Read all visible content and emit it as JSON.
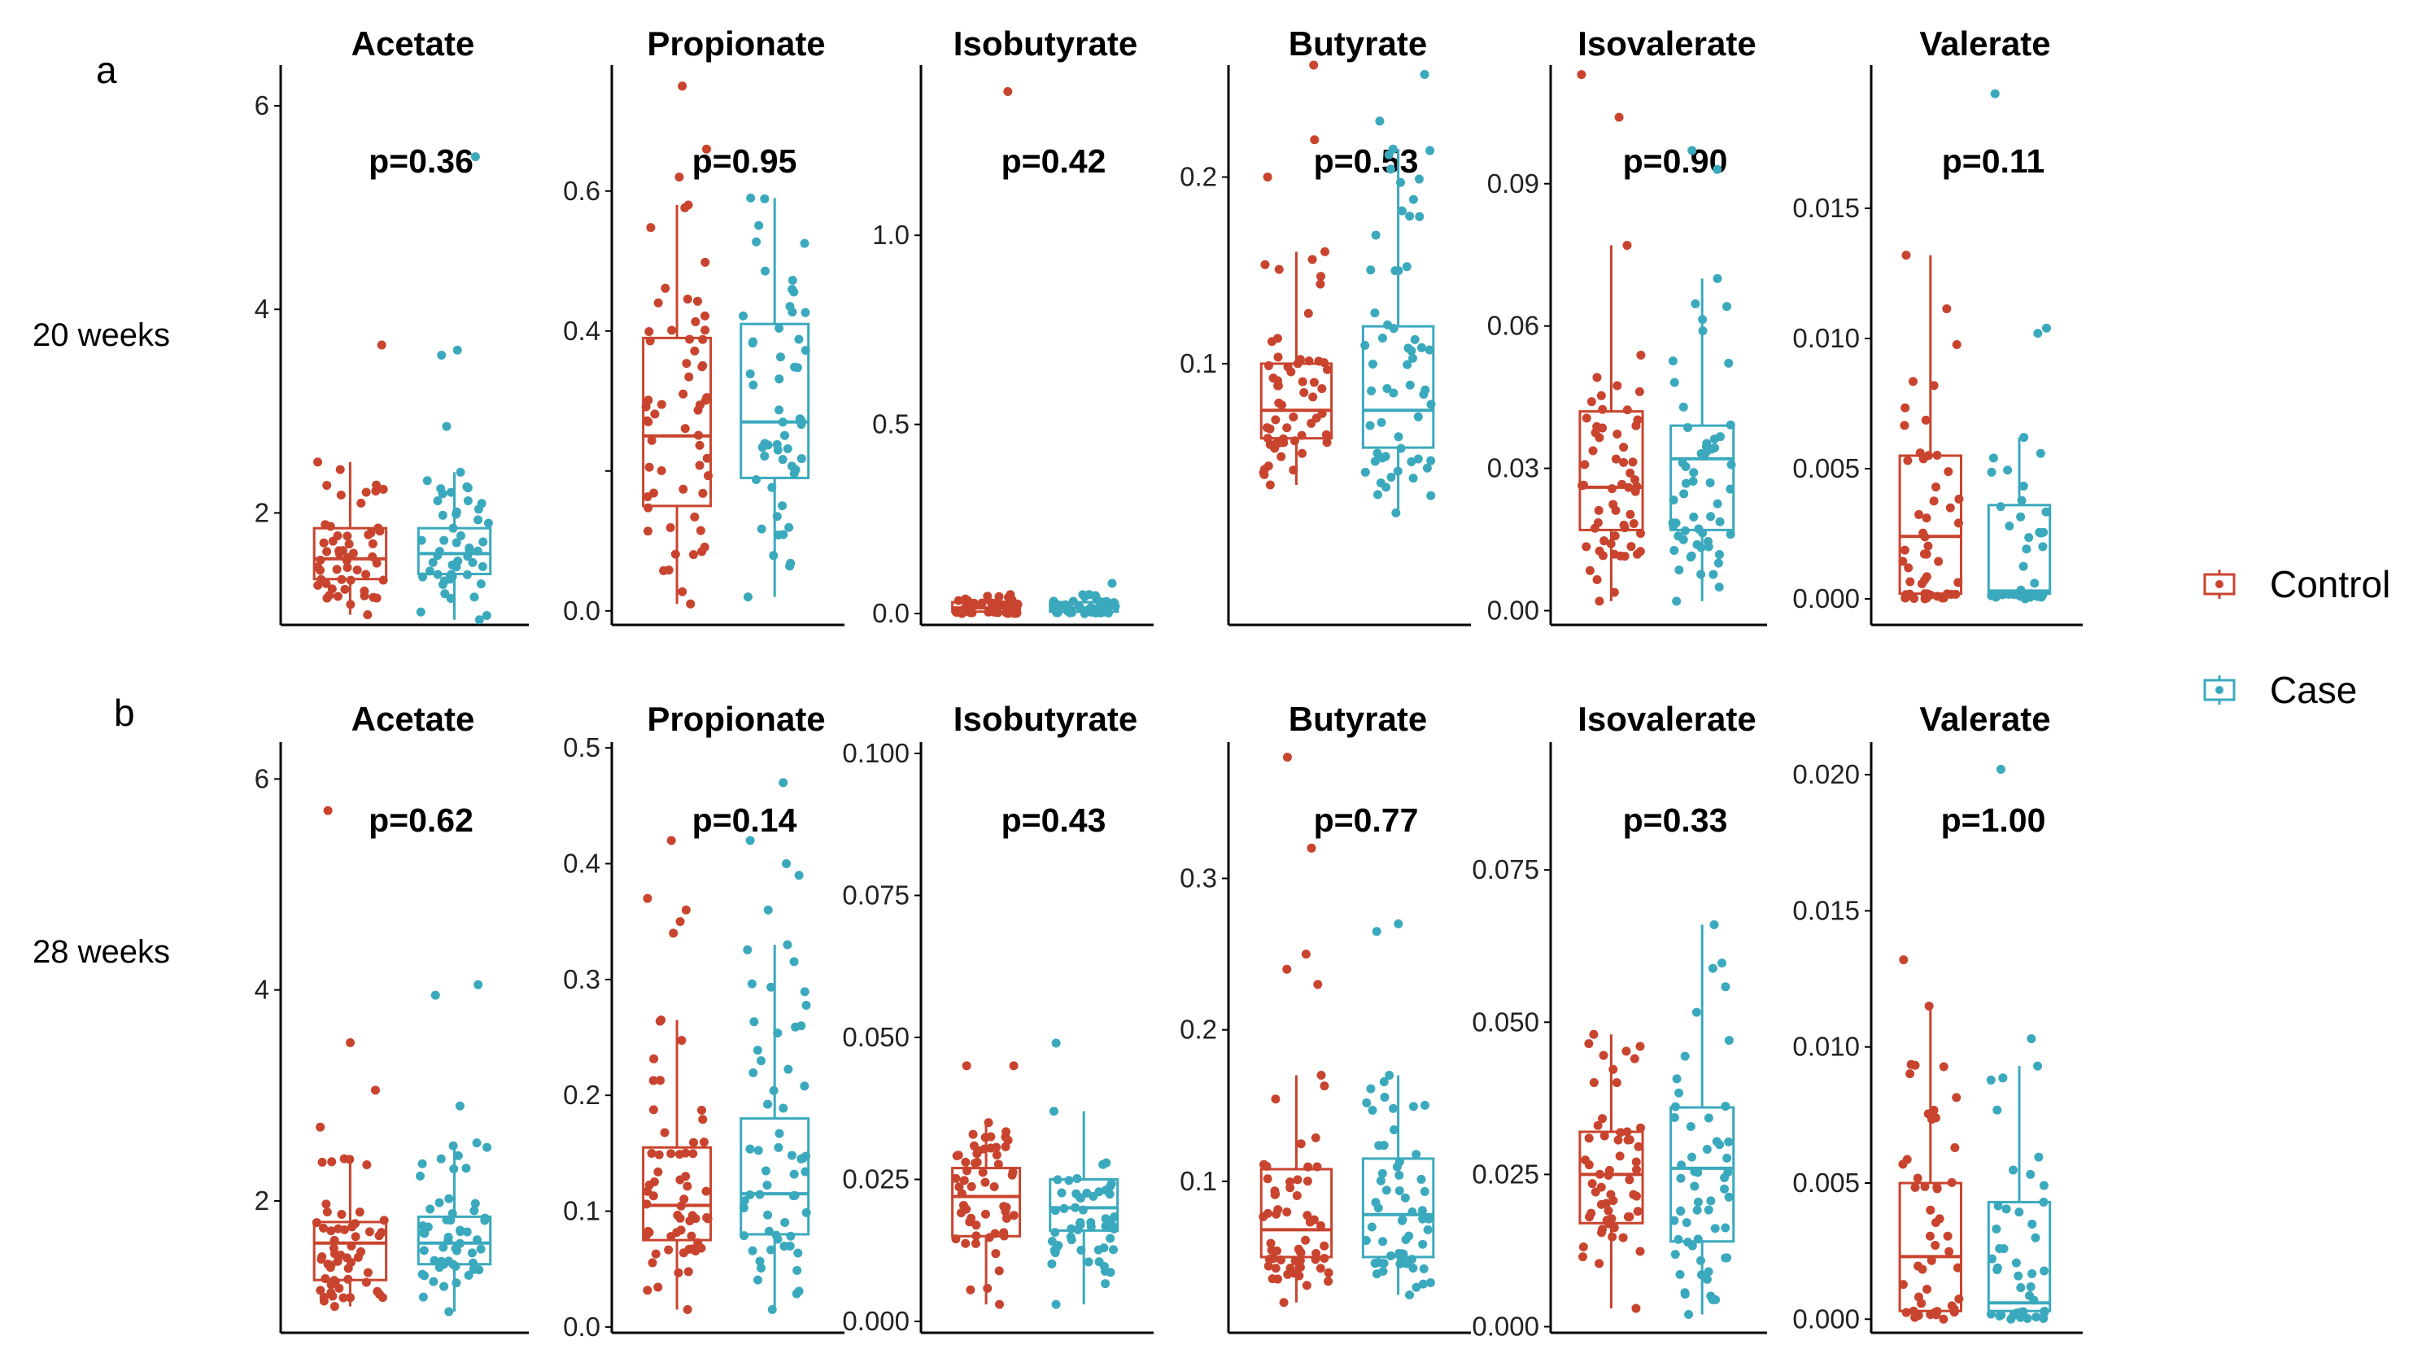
{
  "colors": {
    "control": "#c9442e",
    "case": "#3ba9bd",
    "axis": "#000000"
  },
  "legend": [
    {
      "key": "control",
      "label": "Control"
    },
    {
      "key": "case",
      "label": "Case"
    }
  ],
  "chart_data": [
    {
      "type": "box",
      "letter": "a",
      "row_label": "20 weeks",
      "panels": [
        {
          "title": "Acetate",
          "p": "p=0.36",
          "ylim": [
            0.9,
            6.4
          ],
          "ticks": [
            2,
            4,
            6
          ],
          "tick_labels": [
            "2",
            "4",
            "6"
          ],
          "series": [
            {
              "name": "Control",
              "q1": 1.35,
              "median": 1.55,
              "q3": 1.85,
              "whisker_low": 1.0,
              "whisker_high": 2.5,
              "n": 52,
              "outliers": [
                3.65
              ]
            },
            {
              "name": "Case",
              "q1": 1.4,
              "median": 1.6,
              "q3": 1.85,
              "whisker_low": 0.95,
              "whisker_high": 2.4,
              "n": 50,
              "outliers": [
                5.5,
                3.6,
                3.55,
                2.85
              ]
            }
          ]
        },
        {
          "title": "Propionate",
          "p": "p=0.95",
          "ylim": [
            -0.02,
            0.78
          ],
          "ticks": [
            0.0,
            0.2,
            0.4,
            0.6
          ],
          "tick_labels": [
            "0.0",
            "",
            "0.4",
            "0.6"
          ],
          "series": [
            {
              "name": "Control",
              "q1": 0.15,
              "median": 0.25,
              "q3": 0.39,
              "whisker_low": 0.01,
              "whisker_high": 0.58,
              "n": 56,
              "outliers": [
                0.75,
                0.66,
                0.62
              ]
            },
            {
              "name": "Case",
              "q1": 0.19,
              "median": 0.27,
              "q3": 0.41,
              "whisker_low": 0.02,
              "whisker_high": 0.59,
              "n": 52,
              "outliers": []
            }
          ]
        },
        {
          "title": "Isobutyrate",
          "p": "p=0.42",
          "ylim": [
            -0.03,
            1.45
          ],
          "ticks": [
            0.0,
            0.5,
            1.0
          ],
          "tick_labels": [
            "0.0",
            "0.5",
            "1.0"
          ],
          "series": [
            {
              "name": "Control",
              "q1": 0.005,
              "median": 0.015,
              "q3": 0.03,
              "whisker_low": 0.0,
              "whisker_high": 0.05,
              "n": 42,
              "outliers": [
                1.38
              ]
            },
            {
              "name": "Case",
              "q1": 0.005,
              "median": 0.015,
              "q3": 0.03,
              "whisker_low": 0.0,
              "whisker_high": 0.05,
              "n": 40,
              "outliers": [
                0.08
              ]
            }
          ]
        },
        {
          "title": "Butyrate",
          "p": "p=0.53",
          "ylim": [
            -0.04,
            0.26
          ],
          "ticks": [
            0.1,
            0.2
          ],
          "tick_labels": [
            "0.1",
            "0.2"
          ],
          "series": [
            {
              "name": "Control",
              "q1": 0.06,
              "median": 0.075,
              "q3": 0.1,
              "whisker_low": 0.035,
              "whisker_high": 0.16,
              "n": 55,
              "outliers": [
                0.26,
                0.22,
                0.2
              ]
            },
            {
              "name": "Case",
              "q1": 0.055,
              "median": 0.075,
              "q3": 0.12,
              "whisker_low": 0.02,
              "whisker_high": 0.215,
              "n": 55,
              "outliers": [
                0.255,
                0.23
              ]
            }
          ]
        },
        {
          "title": "Isovalerate",
          "p": "p=0.90",
          "ylim": [
            -0.003,
            0.115
          ],
          "ticks": [
            0.0,
            0.03,
            0.06,
            0.09
          ],
          "tick_labels": [
            "0.00",
            "0.03",
            "0.06",
            "0.09"
          ],
          "series": [
            {
              "name": "Control",
              "q1": 0.017,
              "median": 0.026,
              "q3": 0.042,
              "whisker_low": 0.002,
              "whisker_high": 0.077,
              "n": 56,
              "outliers": [
                0.113,
                0.104
              ]
            },
            {
              "name": "Case",
              "q1": 0.017,
              "median": 0.032,
              "q3": 0.039,
              "whisker_low": 0.002,
              "whisker_high": 0.07,
              "n": 55,
              "outliers": [
                0.097,
                0.093
              ]
            }
          ]
        },
        {
          "title": "Valerate",
          "p": "p=0.11",
          "ylim": [
            -0.001,
            0.0205
          ],
          "ticks": [
            0.0,
            0.005,
            0.01,
            0.015
          ],
          "tick_labels": [
            "0.000",
            "0.005",
            "0.010",
            "0.015"
          ],
          "series": [
            {
              "name": "Control",
              "q1": 0.0002,
              "median": 0.0024,
              "q3": 0.0055,
              "whisker_low": 0.0,
              "whisker_high": 0.0132,
              "n": 50,
              "outliers": []
            },
            {
              "name": "Case",
              "q1": 0.0002,
              "median": 0.0003,
              "q3": 0.0036,
              "whisker_low": 0.0,
              "whisker_high": 0.0062,
              "n": 40,
              "outliers": [
                0.0194,
                0.0104,
                0.0102
              ]
            }
          ]
        }
      ]
    },
    {
      "type": "box",
      "letter": "b",
      "row_label": "28 weeks",
      "panels": [
        {
          "title": "Acetate",
          "p": "p=0.62",
          "ylim": [
            0.75,
            6.35
          ],
          "ticks": [
            2,
            4,
            6
          ],
          "tick_labels": [
            "2",
            "4",
            "6"
          ],
          "series": [
            {
              "name": "Control",
              "q1": 1.25,
              "median": 1.6,
              "q3": 1.8,
              "whisker_low": 1.0,
              "whisker_high": 2.4,
              "n": 54,
              "outliers": [
                5.7,
                3.5,
                3.05,
                2.7
              ]
            },
            {
              "name": "Case",
              "q1": 1.4,
              "median": 1.6,
              "q3": 1.85,
              "whisker_low": 0.95,
              "whisker_high": 2.55,
              "n": 52,
              "outliers": [
                4.05,
                3.95,
                2.9
              ]
            }
          ]
        },
        {
          "title": "Propionate",
          "p": "p=0.14",
          "ylim": [
            -0.005,
            0.505
          ],
          "ticks": [
            0.0,
            0.1,
            0.2,
            0.3,
            0.4,
            0.5
          ],
          "tick_labels": [
            "0.0",
            "0.1",
            "0.2",
            "0.3",
            "0.4",
            "0.5"
          ],
          "series": [
            {
              "name": "Control",
              "q1": 0.075,
              "median": 0.105,
              "q3": 0.155,
              "whisker_low": 0.015,
              "whisker_high": 0.265,
              "n": 56,
              "outliers": [
                0.42,
                0.37,
                0.36,
                0.35,
                0.34
              ]
            },
            {
              "name": "Case",
              "q1": 0.08,
              "median": 0.115,
              "q3": 0.18,
              "whisker_low": 0.015,
              "whisker_high": 0.33,
              "n": 55,
              "outliers": [
                0.47,
                0.42,
                0.4,
                0.39,
                0.36
              ]
            }
          ]
        },
        {
          "title": "Isobutyrate",
          "p": "p=0.43",
          "ylim": [
            -0.002,
            0.102
          ],
          "ticks": [
            0.0,
            0.025,
            0.05,
            0.075,
            0.1
          ],
          "tick_labels": [
            "0.000",
            "0.025",
            "0.050",
            "0.075",
            "0.100"
          ],
          "series": [
            {
              "name": "Control",
              "q1": 0.015,
              "median": 0.022,
              "q3": 0.027,
              "whisker_low": 0.003,
              "whisker_high": 0.035,
              "n": 55,
              "outliers": [
                0.045,
                0.045
              ]
            },
            {
              "name": "Case",
              "q1": 0.016,
              "median": 0.02,
              "q3": 0.025,
              "whisker_low": 0.003,
              "whisker_high": 0.037,
              "n": 55,
              "outliers": [
                0.049
              ]
            }
          ]
        },
        {
          "title": "Butyrate",
          "p": "p=0.77",
          "ylim": [
            0.0,
            0.39
          ],
          "ticks": [
            0.1,
            0.2,
            0.3
          ],
          "tick_labels": [
            "0.1",
            "0.2",
            "0.3"
          ],
          "series": [
            {
              "name": "Control",
              "q1": 0.05,
              "median": 0.068,
              "q3": 0.108,
              "whisker_low": 0.02,
              "whisker_high": 0.17,
              "n": 55,
              "outliers": [
                0.38,
                0.32,
                0.25,
                0.24,
                0.23
              ]
            },
            {
              "name": "Case",
              "q1": 0.05,
              "median": 0.078,
              "q3": 0.115,
              "whisker_low": 0.025,
              "whisker_high": 0.17,
              "n": 55,
              "outliers": [
                0.27,
                0.265
              ]
            }
          ]
        },
        {
          "title": "Isovalerate",
          "p": "p=0.33",
          "ylim": [
            -0.001,
            0.096
          ],
          "ticks": [
            0.0,
            0.025,
            0.05,
            0.075
          ],
          "tick_labels": [
            "0.000",
            "0.025",
            "0.050",
            "0.075"
          ],
          "series": [
            {
              "name": "Control",
              "q1": 0.017,
              "median": 0.025,
              "q3": 0.032,
              "whisker_low": 0.003,
              "whisker_high": 0.048,
              "n": 55,
              "outliers": []
            },
            {
              "name": "Case",
              "q1": 0.014,
              "median": 0.026,
              "q3": 0.036,
              "whisker_low": 0.002,
              "whisker_high": 0.066,
              "n": 55,
              "outliers": []
            }
          ]
        },
        {
          "title": "Valerate",
          "p": "p=1.00",
          "ylim": [
            -0.0005,
            0.0212
          ],
          "ticks": [
            0.0,
            0.005,
            0.01,
            0.015,
            0.02
          ],
          "tick_labels": [
            "0.000",
            "0.005",
            "0.010",
            "0.015",
            "0.020"
          ],
          "series": [
            {
              "name": "Control",
              "q1": 0.0003,
              "median": 0.0023,
              "q3": 0.005,
              "whisker_low": 0.0,
              "whisker_high": 0.0115,
              "n": 45,
              "outliers": [
                0.0132
              ]
            },
            {
              "name": "Case",
              "q1": 0.0003,
              "median": 0.0006,
              "q3": 0.0043,
              "whisker_low": 0.0,
              "whisker_high": 0.0093,
              "n": 40,
              "outliers": [
                0.0202,
                0.0103
              ]
            }
          ]
        }
      ]
    }
  ]
}
